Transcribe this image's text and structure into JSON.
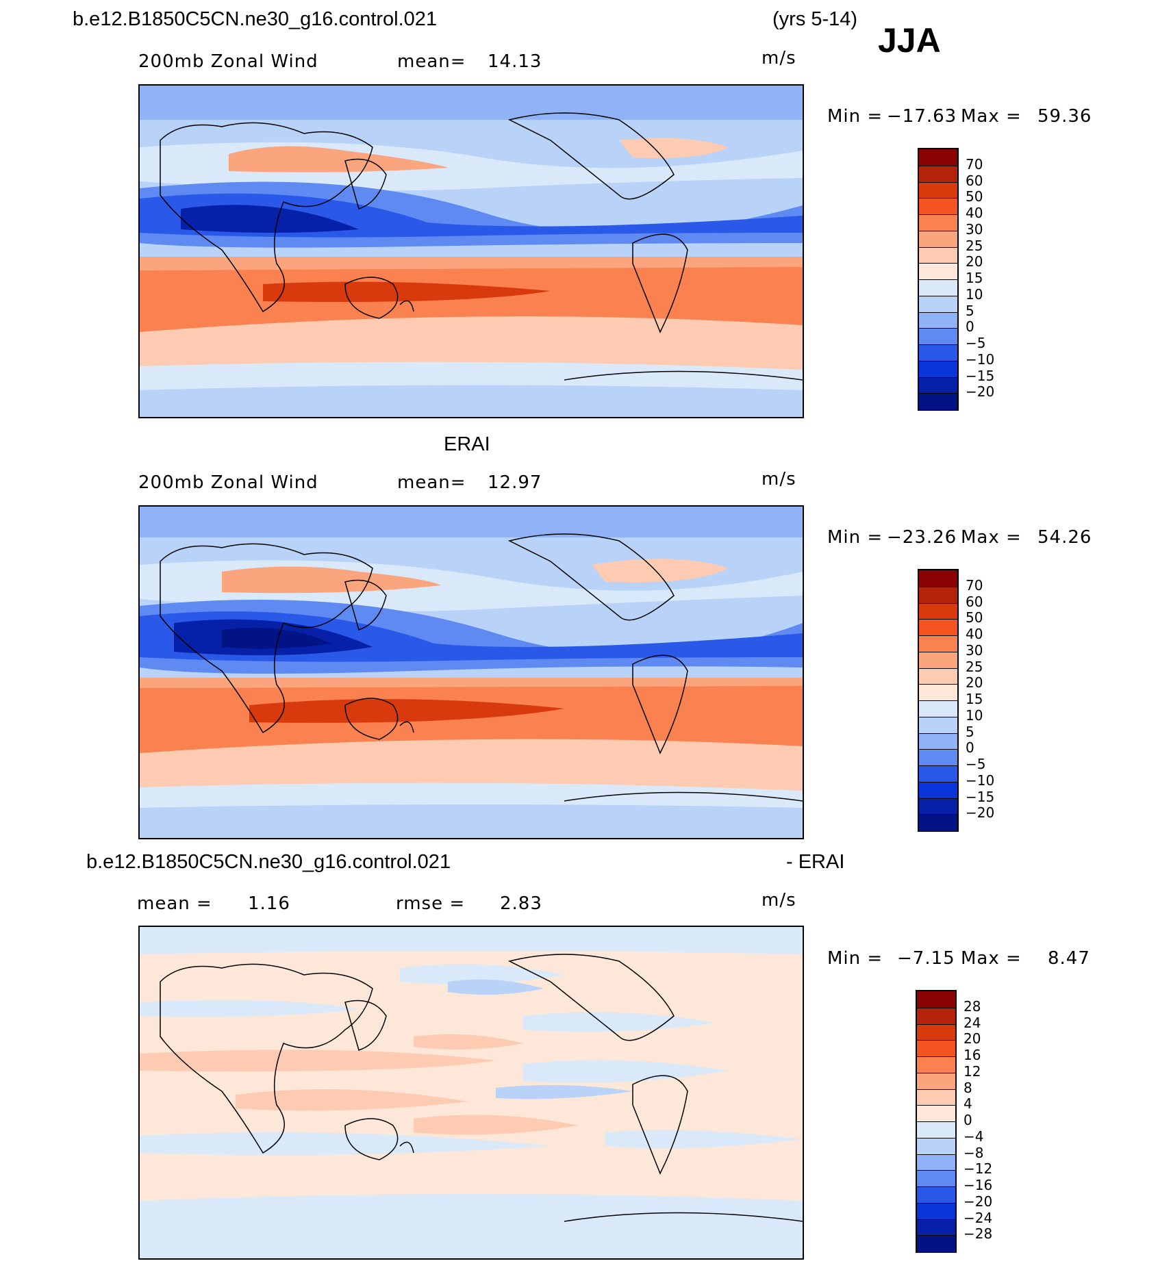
{
  "header": {
    "case_name": "b.e12.B1850C5CN.ne30_g16.control.021",
    "years": "(yrs 5-14)",
    "season": "JJA"
  },
  "panels": [
    {
      "id": "model",
      "heading": "",
      "left_label": "200mb Zonal Wind",
      "mean_label": "mean=",
      "mean_value": "14.13",
      "units": "m/s",
      "min_label": "Min  =",
      "min_value": "-17.63",
      "max_label": "Max  =",
      "max_value": "59.36",
      "colorbar_ticks": [
        "70",
        "60",
        "50",
        "40",
        "30",
        "25",
        "20",
        "15",
        "10",
        "5",
        "0",
        "-5",
        "-10",
        "-15",
        "-20"
      ]
    },
    {
      "id": "obs",
      "heading": "ERAI",
      "left_label": "200mb Zonal Wind",
      "mean_label": "mean=",
      "mean_value": "12.97",
      "units": "m/s",
      "min_label": "Min  =",
      "min_value": "-23.26",
      "max_label": "Max  =",
      "max_value": "54.26",
      "colorbar_ticks": [
        "70",
        "60",
        "50",
        "40",
        "30",
        "25",
        "20",
        "15",
        "10",
        "5",
        "0",
        "-5",
        "-10",
        "-15",
        "-20"
      ]
    },
    {
      "id": "diff",
      "heading": "b.e12.B1850C5CN.ne30_g16.control.021",
      "heading_right": "- ERAI",
      "mean_label": "mean =",
      "mean_value": "1.16",
      "rmse_label": "rmse =",
      "rmse_value": "2.83",
      "units": "m/s",
      "min_label": "Min  =",
      "min_value": "-7.15",
      "max_label": "Max  =",
      "max_value": "8.47",
      "colorbar_ticks": [
        "28",
        "24",
        "20",
        "16",
        "12",
        "8",
        "4",
        "0",
        "-4",
        "-8",
        "-12",
        "-16",
        "-20",
        "-24",
        "-28"
      ]
    }
  ],
  "colors": {
    "wind_scale": [
      "#8a0303",
      "#b5230a",
      "#d8390d",
      "#f4541f",
      "#fa8150",
      "#fba57f",
      "#fdcbb2",
      "#fde7d8",
      "#d9e9fa",
      "#b8d2f8",
      "#8fb3f6",
      "#5e8af2",
      "#2a59ea",
      "#0a35d8",
      "#0621a8",
      "#021386"
    ],
    "diff_scale": [
      "#8a0303",
      "#b5230a",
      "#d8390d",
      "#f4541f",
      "#fa8150",
      "#fba57f",
      "#fdcbb2",
      "#fde7d8",
      "#d9e9fa",
      "#b8d2f8",
      "#8fb3f6",
      "#5e8af2",
      "#2a59ea",
      "#0a35d8",
      "#0621a8",
      "#021386"
    ]
  }
}
